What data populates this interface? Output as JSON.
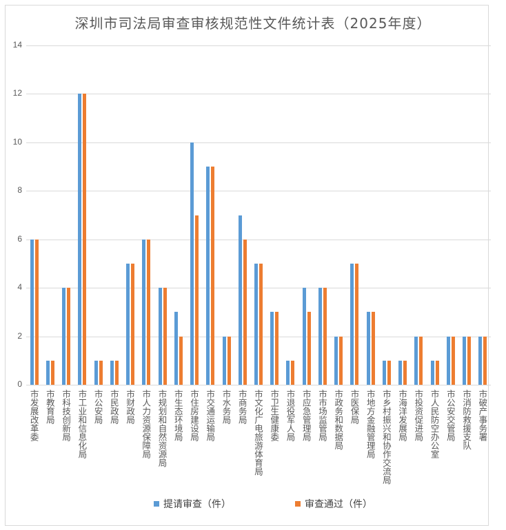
{
  "chart_data": {
    "type": "bar",
    "title": "深圳市司法局审查审核规范性文件统计表（2025年度）",
    "xlabel": "",
    "ylabel": "",
    "ylim": [
      0,
      14
    ],
    "yticks": [
      0,
      2,
      4,
      6,
      8,
      10,
      12,
      14
    ],
    "grid": true,
    "legend_position": "bottom",
    "categories": [
      "市发展改革委",
      "市教育局",
      "市科技创新局",
      "市工业和信息化局",
      "市公安局",
      "市民政局",
      "市财政局",
      "市人力资源保障局",
      "市规划和自然资源局",
      "市生态环境局",
      "市住房建设局",
      "市交通运输局",
      "市水务局",
      "市商务局",
      "市文化广电旅游体育局",
      "市卫生健康委",
      "市退役军人局",
      "市应急管理局",
      "市市场监管局",
      "市政务和数据局",
      "市医保局",
      "市地方金融管理局",
      "市乡村振兴和协作交流局",
      "市海洋发展局",
      "市投资促进局",
      "市人民防空办公室",
      "市公安交管局",
      "市消防救援支队",
      "市破产事务署"
    ],
    "series": [
      {
        "name": "提请审查（件）",
        "color": "#5b9bd5",
        "values": [
          6,
          1,
          4,
          12,
          1,
          1,
          5,
          6,
          4,
          3,
          10,
          9,
          2,
          7,
          5,
          3,
          1,
          4,
          4,
          2,
          5,
          3,
          1,
          1,
          2,
          1,
          2,
          2,
          2
        ]
      },
      {
        "name": "审查通过（件）",
        "color": "#ed7d31",
        "values": [
          6,
          1,
          4,
          12,
          1,
          1,
          5,
          6,
          4,
          2,
          7,
          9,
          2,
          6,
          5,
          3,
          1,
          3,
          4,
          2,
          5,
          3,
          1,
          1,
          2,
          1,
          2,
          2,
          2
        ]
      }
    ]
  }
}
